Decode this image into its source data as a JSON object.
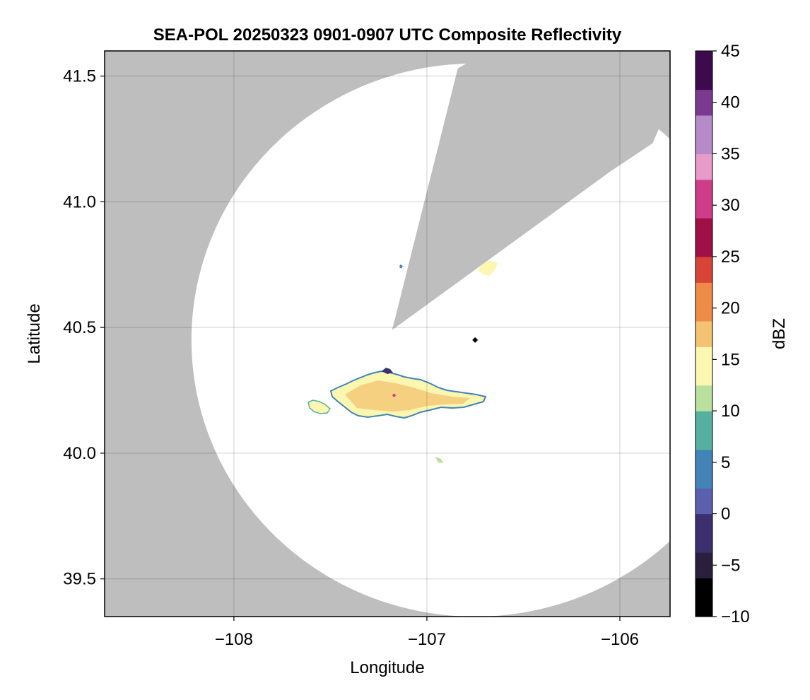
{
  "chart_data": {
    "type": "heatmap",
    "title": "SEA-POL 20250323 0901-0907 UTC Composite Reflectivity",
    "xlabel": "Longitude",
    "ylabel": "Latitude",
    "xlim": [
      -108.67,
      -105.74
    ],
    "ylim": [
      39.35,
      41.6
    ],
    "x_ticks": [
      -108,
      -107,
      -106
    ],
    "x_tick_labels": [
      "−108",
      "−107",
      "−106"
    ],
    "y_ticks": [
      39.5,
      40.0,
      40.5,
      41.0,
      41.5
    ],
    "y_tick_labels": [
      "39.5",
      "40.0",
      "40.5",
      "41.0",
      "41.5"
    ],
    "grid": true,
    "colorbar": {
      "label": "dBZ",
      "min": -10,
      "max": 45,
      "ticks": [
        -10,
        -5,
        0,
        5,
        10,
        15,
        20,
        25,
        30,
        35,
        40,
        45
      ],
      "tick_labels": [
        "−10",
        "−5",
        "0",
        "5",
        "10",
        "15",
        "20",
        "25",
        "30",
        "35",
        "40",
        "45"
      ],
      "colors": [
        "#000000",
        "#2a1f3d",
        "#3c2f6e",
        "#5a5fae",
        "#4384b8",
        "#56b0a0",
        "#b9e09e",
        "#fbf6b0",
        "#f4c372",
        "#ef8a47",
        "#d84537",
        "#9e1046",
        "#cf3c89",
        "#e89ac8",
        "#b48bc8",
        "#7a3a90",
        "#3d0a4e"
      ]
    },
    "no_data_color": "#bebebe",
    "radar": {
      "center_lon": -106.75,
      "center_lat": 40.45,
      "max_range_lon": 1.47,
      "max_range_lat": 1.1,
      "blocked_sector_start_lon": -107.18,
      "blocked_sector_start_lat": 40.49,
      "blocked_edge1_lon": -106.84,
      "blocked_edge1_lat": 41.53,
      "blocked_edge2_lon": -106.05,
      "blocked_edge2_lat": 41.12,
      "marker": "black diamond"
    },
    "echoes": [
      {
        "name": "main band",
        "lon_min": -107.46,
        "lon_max": -106.56,
        "lat_min": 40.13,
        "lat_max": 40.33,
        "dbz_typical": [
          10,
          20
        ]
      },
      {
        "name": "western cell",
        "lon_min": -107.62,
        "lon_max": -107.48,
        "lat_min": 40.15,
        "lat_max": 40.2,
        "dbz_typical": [
          10,
          17
        ]
      },
      {
        "name": "north cells",
        "lon_min": -106.73,
        "lon_max": -106.64,
        "lat_min": 40.69,
        "lat_max": 40.76,
        "dbz_typical": [
          10,
          17
        ]
      },
      {
        "name": "small south cell",
        "lon_min": -106.96,
        "lon_max": -106.92,
        "lat_min": 39.95,
        "lat_max": 39.97,
        "dbz_typical": [
          8,
          12
        ]
      }
    ]
  }
}
